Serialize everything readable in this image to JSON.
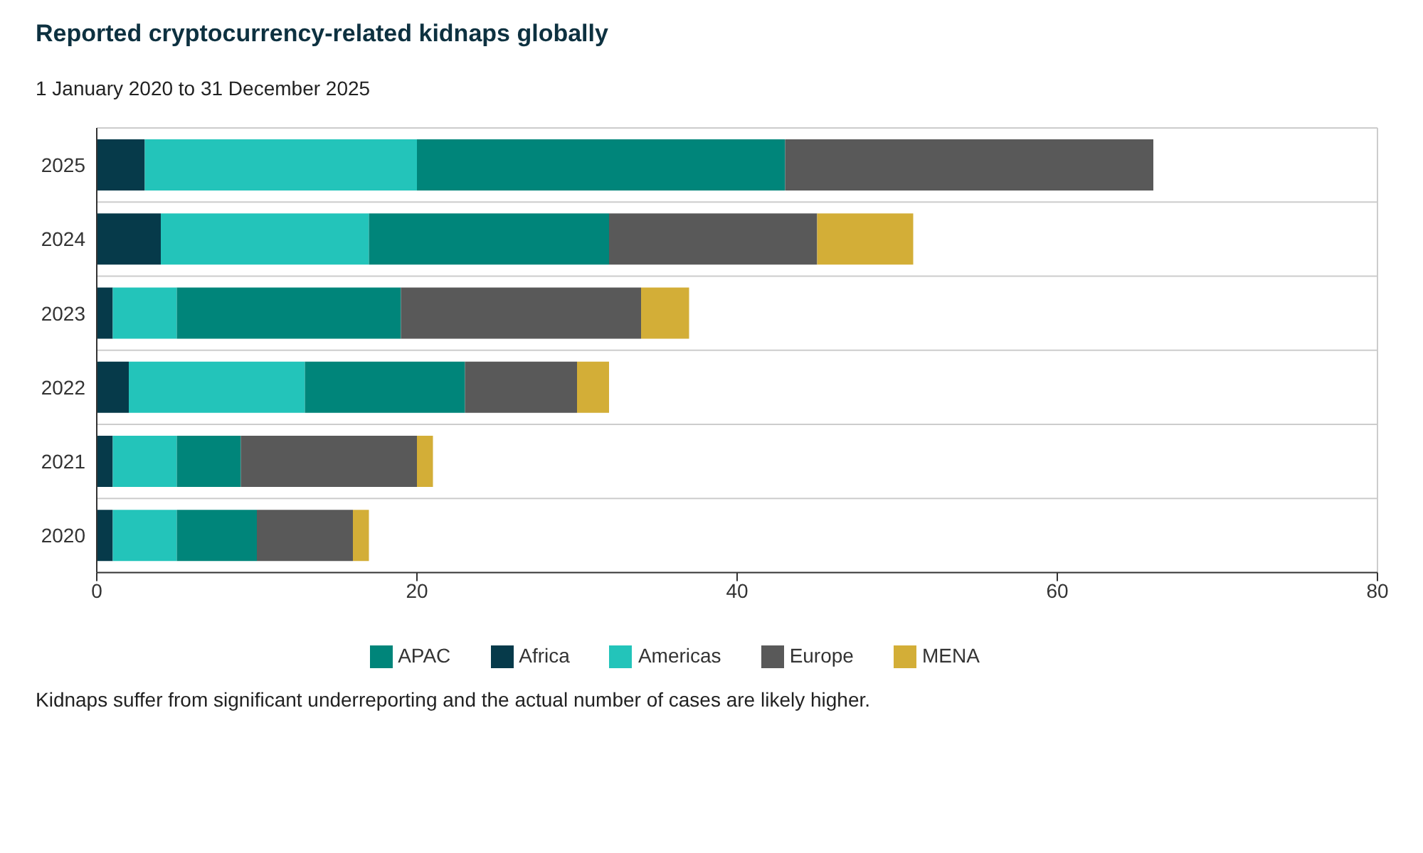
{
  "chart_data": {
    "type": "bar",
    "orientation": "horizontal",
    "stacked": true,
    "title": "Reported cryptocurrency-related kidnaps globally",
    "subtitle": "1 January 2020 to 31 December 2025",
    "categories": [
      "2025",
      "2024",
      "2023",
      "2022",
      "2021",
      "2020"
    ],
    "series": [
      {
        "name": "Africa",
        "color": "#063a4a",
        "values": [
          3,
          4,
          1,
          2,
          1,
          1
        ]
      },
      {
        "name": "Americas",
        "color": "#23c4ba",
        "values": [
          17,
          13,
          4,
          11,
          4,
          4
        ]
      },
      {
        "name": "APAC",
        "color": "#00857a",
        "values": [
          23,
          15,
          14,
          10,
          4,
          5
        ]
      },
      {
        "name": "Europe",
        "color": "#595959",
        "values": [
          23,
          13,
          15,
          7,
          11,
          6
        ]
      },
      {
        "name": "MENA",
        "color": "#d3ae37",
        "values": [
          0,
          6,
          3,
          2,
          1,
          1
        ]
      }
    ],
    "xlim": [
      0,
      80
    ],
    "xticks": [
      0,
      20,
      40,
      60,
      80
    ],
    "grid": "y",
    "legend": "bottom",
    "annotations": [
      "Kidnaps suffer from significant underreporting and the actual number of cases are likely higher."
    ]
  }
}
